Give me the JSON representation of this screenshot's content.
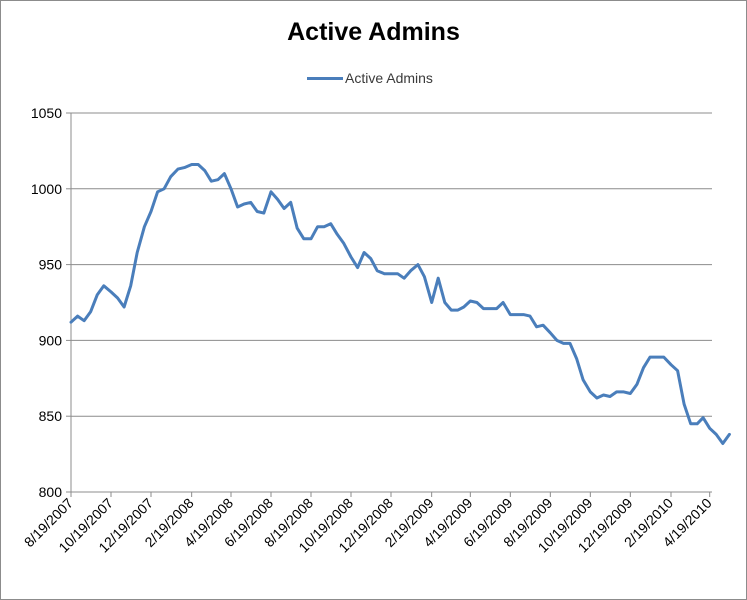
{
  "chart_data": {
    "type": "line",
    "title": "Active Admins",
    "xlabel": "",
    "ylabel": "",
    "ylim": [
      800,
      1050
    ],
    "yticks": [
      800,
      850,
      900,
      950,
      1000,
      1050
    ],
    "xtick_labels": [
      "8/19/2007",
      "10/19/2007",
      "12/19/2007",
      "2/19/2008",
      "4/19/2008",
      "6/19/2008",
      "8/19/2008",
      "10/19/2008",
      "12/19/2008",
      "2/19/2009",
      "4/19/2009",
      "6/19/2009",
      "8/19/2009",
      "10/19/2009",
      "12/19/2009",
      "2/19/2010",
      "4/19/2010"
    ],
    "grid": "horizontal",
    "legend_position": "top",
    "color": "#4a7ebb",
    "series": [
      {
        "name": "Active Admins",
        "x": [
          "2007-08-19",
          "2007-08-29",
          "2007-09-08",
          "2007-09-18",
          "2007-09-28",
          "2007-10-08",
          "2007-10-19",
          "2007-10-29",
          "2007-11-08",
          "2007-11-18",
          "2007-11-28",
          "2007-12-09",
          "2007-12-19",
          "2007-12-29",
          "2008-01-08",
          "2008-01-18",
          "2008-01-29",
          "2008-02-08",
          "2008-02-19",
          "2008-02-29",
          "2008-03-10",
          "2008-03-20",
          "2008-03-30",
          "2008-04-09",
          "2008-04-19",
          "2008-04-29",
          "2008-05-09",
          "2008-05-19",
          "2008-05-29",
          "2008-06-08",
          "2008-06-19",
          "2008-06-29",
          "2008-07-09",
          "2008-07-19",
          "2008-07-29",
          "2008-08-08",
          "2008-08-19",
          "2008-08-29",
          "2008-09-08",
          "2008-09-18",
          "2008-09-28",
          "2008-10-08",
          "2008-10-19",
          "2008-10-29",
          "2008-11-08",
          "2008-11-18",
          "2008-11-28",
          "2008-12-09",
          "2008-12-19",
          "2008-12-29",
          "2009-01-08",
          "2009-01-18",
          "2009-01-29",
          "2009-02-08",
          "2009-02-19",
          "2009-03-01",
          "2009-03-11",
          "2009-03-21",
          "2009-03-31",
          "2009-04-09",
          "2009-04-19",
          "2009-04-29",
          "2009-05-09",
          "2009-05-19",
          "2009-05-29",
          "2009-06-08",
          "2009-06-19",
          "2009-06-29",
          "2009-07-09",
          "2009-07-19",
          "2009-07-29",
          "2009-08-08",
          "2009-08-19",
          "2009-08-29",
          "2009-09-08",
          "2009-09-18",
          "2009-09-28",
          "2009-10-08",
          "2009-10-19",
          "2009-10-29",
          "2009-11-08",
          "2009-11-18",
          "2009-11-28",
          "2009-12-09",
          "2009-12-19",
          "2009-12-29",
          "2010-01-08",
          "2010-01-18",
          "2010-01-29",
          "2010-02-08",
          "2010-02-19",
          "2010-03-01",
          "2010-03-11",
          "2010-03-21",
          "2010-03-31",
          "2010-04-09",
          "2010-04-19",
          "2010-04-29",
          "2010-05-09",
          "2010-05-19"
        ],
        "values": [
          912,
          916,
          913,
          919,
          930,
          936,
          932,
          928,
          922,
          936,
          958,
          975,
          985,
          998,
          1000,
          1008,
          1013,
          1014,
          1016,
          1016,
          1012,
          1005,
          1006,
          1010,
          1000,
          988,
          990,
          991,
          985,
          984,
          998,
          993,
          987,
          991,
          974,
          967,
          967,
          975,
          975,
          977,
          970,
          964,
          955,
          948,
          958,
          954,
          946,
          944,
          944,
          944,
          941,
          946,
          950,
          942,
          925,
          941,
          925,
          920,
          920,
          922,
          926,
          925,
          921,
          921,
          921,
          925,
          917,
          917,
          917,
          916,
          909,
          910,
          905,
          900,
          898,
          898,
          888,
          874,
          866,
          862,
          864,
          863,
          866,
          866,
          865,
          871,
          882,
          889,
          889,
          889,
          884,
          880,
          858,
          845,
          845,
          849,
          842,
          838,
          832,
          838
        ]
      }
    ]
  }
}
